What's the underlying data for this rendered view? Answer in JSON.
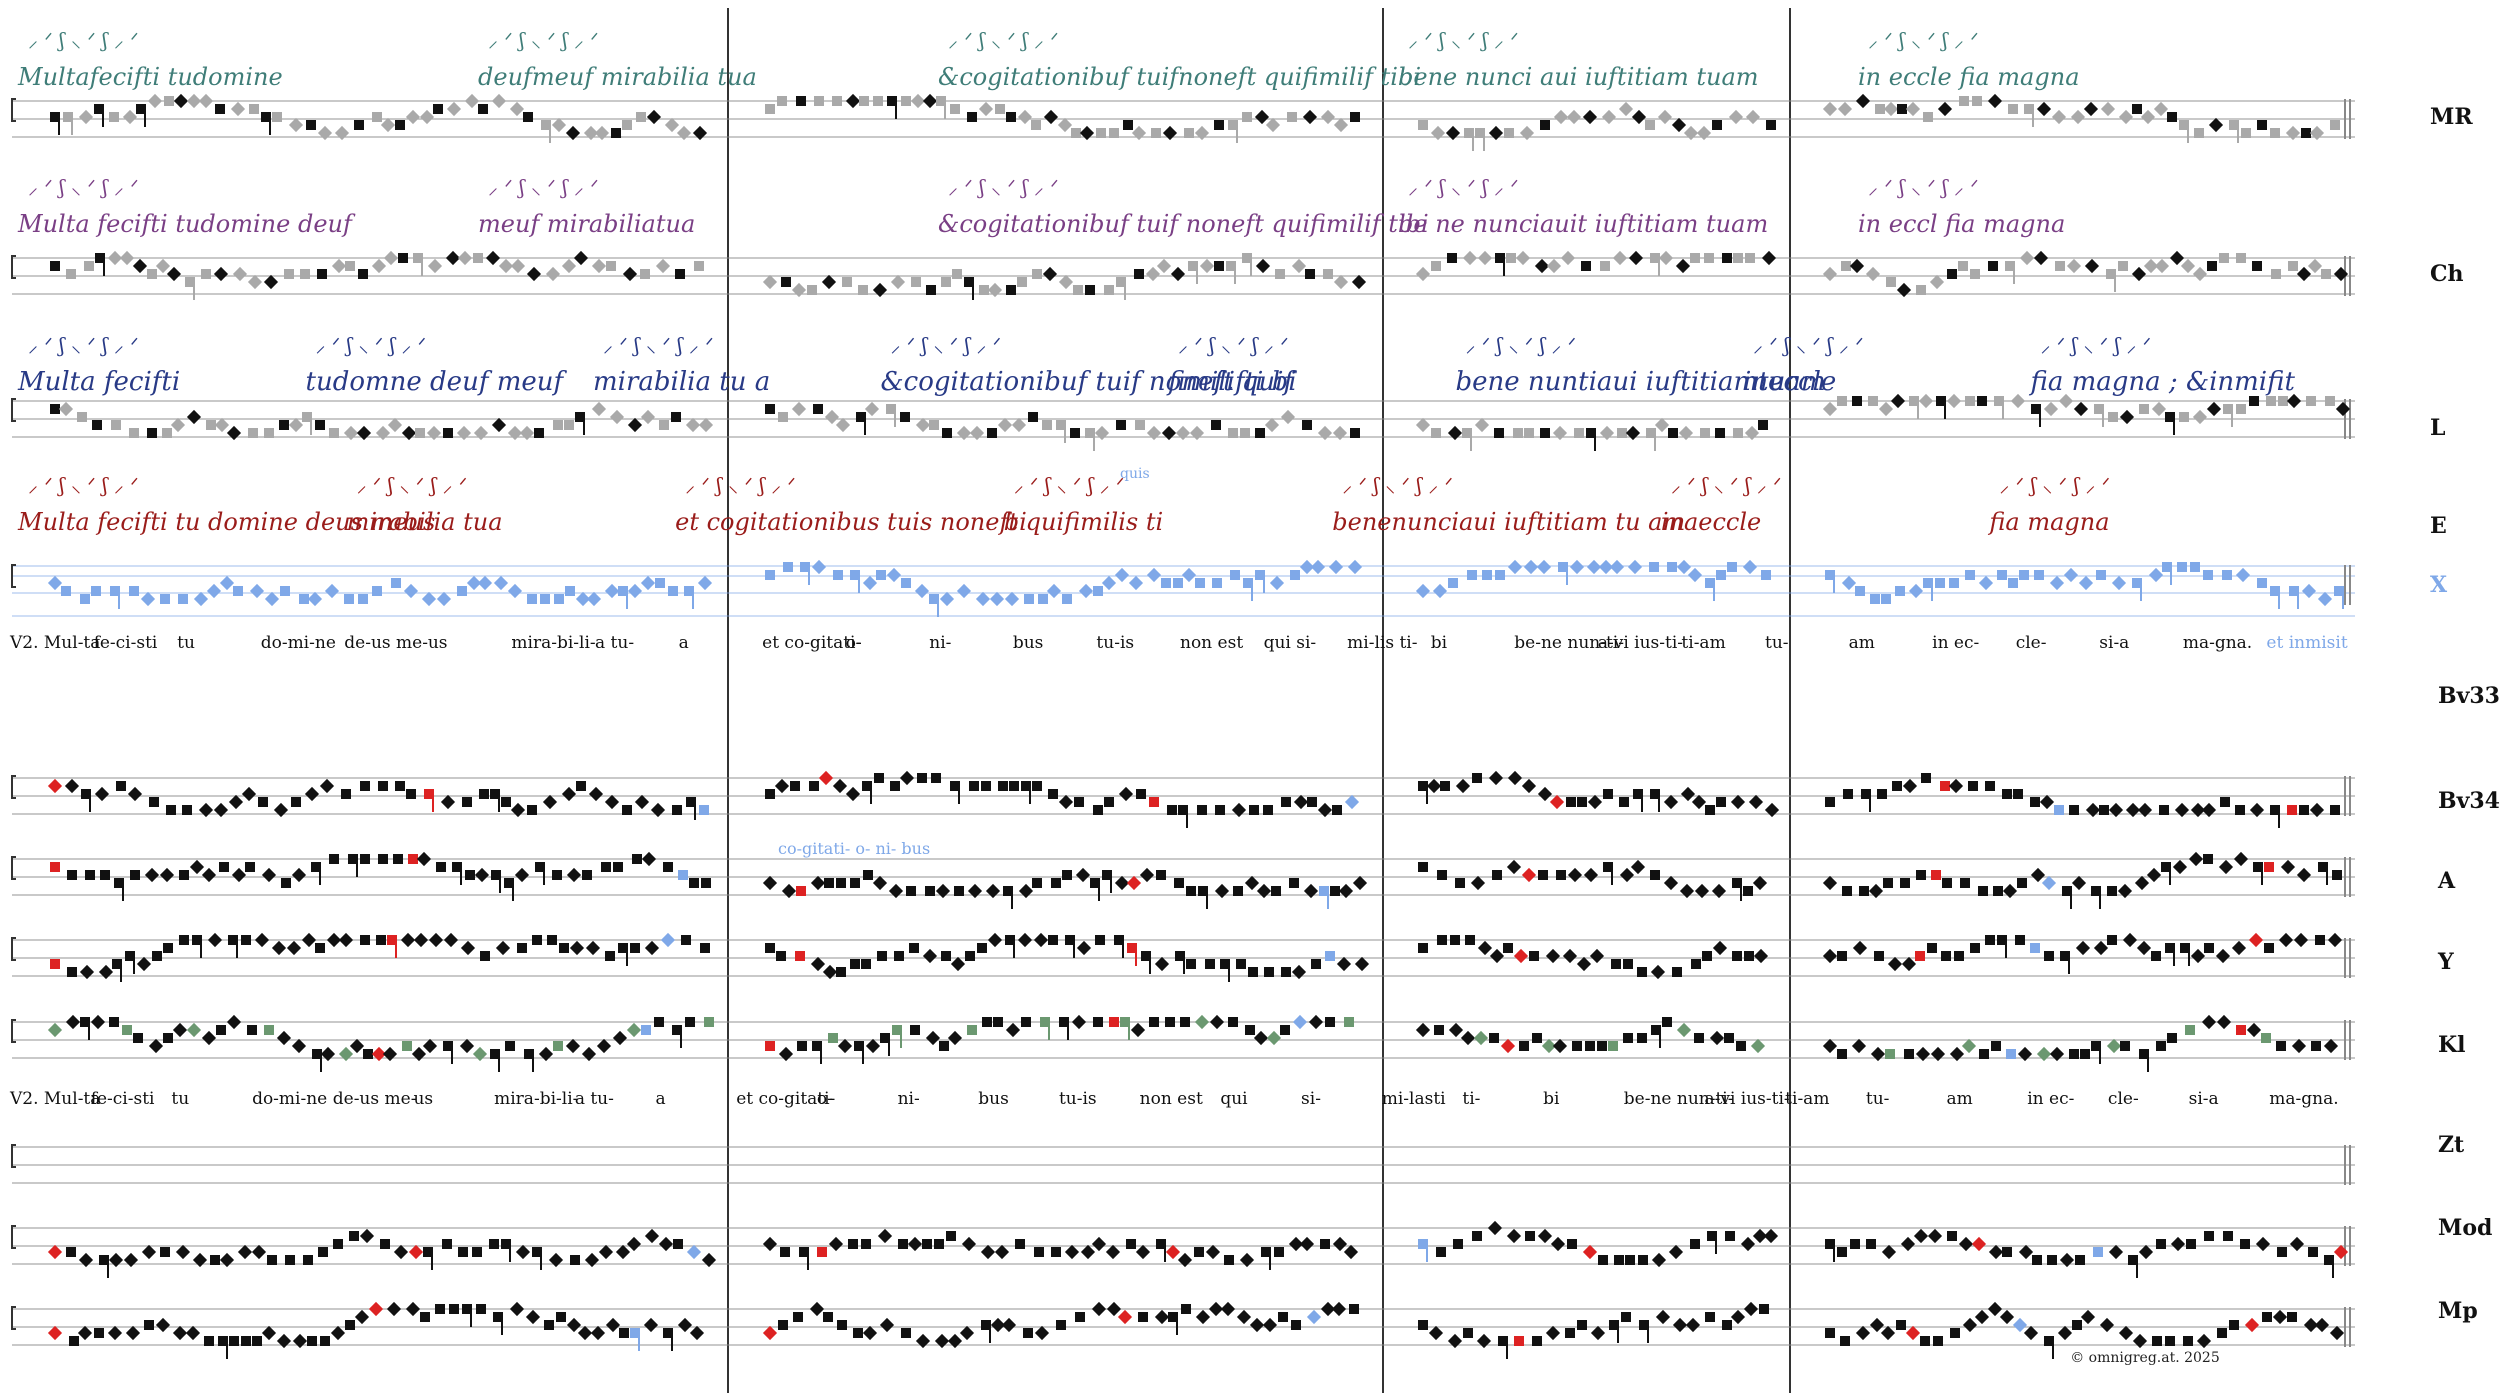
{
  "colors": {
    "black": "#111111",
    "grey": "#a9a9a9",
    "blue": "#7fa8e8",
    "red": "#dd2222",
    "green": "#6b9870",
    "teal_ms": "#3f7d78",
    "purple_ms": "#7a3f85",
    "navy_ms": "#283a86",
    "darkred_ms": "#9a1c1a",
    "staff": "#8c8c8c"
  },
  "sources": [
    {
      "id": "MR",
      "label": "MR",
      "ms_color": "teal_ms",
      "ms_text": [
        "Multafecifti tudomine",
        "deufmeuf mirabilia tua",
        "&cogitationibuf tuifnoneft quifimilif tibi",
        "bene nunci aui iuftitiam tuam",
        "in eccle fia magna"
      ]
    },
    {
      "id": "Ch",
      "label": "Ch",
      "ms_color": "purple_ms",
      "ms_text": [
        "Multa fecifti tudomine deuf",
        "meuf mirabiliatua",
        "&cogitationibuf tuif   noneft quifimilif tibi",
        "be ne nunciauit iuftitiam tuam",
        "in eccl   fia magna"
      ]
    },
    {
      "id": "L",
      "label": "L",
      "ms_color": "navy_ms",
      "ms_text": [
        "Multa fecifti",
        "tudomne deuf meuf",
        "mirabilia tu a",
        "&cogitationibuf tuif noneft quif",
        "fimilifti     bi",
        "bene nuntiaui   iuftitiamtuam",
        "ineccle",
        "fia   magna ;   &inmifit"
      ]
    },
    {
      "id": "E",
      "label": "E",
      "ms_color": "darkred_ms",
      "ms_text": [
        "Multa fecifti tu domine deus meus",
        "mirabilia tua",
        "et cogitationibus   tuis   noneft quifimilis ti",
        "bi",
        "benenunciaui   iuftitiam   tu am",
        "inaeccle",
        "fia magna"
      ],
      "superscript": "quis"
    },
    {
      "id": "X",
      "label": "X",
      "ms_color": "blue",
      "ms_text": []
    }
  ],
  "lyrics_upper": [
    "V2. Mul-ta",
    "fe-ci-sti",
    "tu",
    "do-mi-ne",
    "de-us me-",
    "us",
    "mira-bi-li-",
    "a tu-",
    "a",
    "et co-gitati-",
    "o-",
    "ni-",
    "bus",
    "tu-is",
    "non est",
    "qui si-",
    "mi-lis ti-",
    "bi",
    "be-ne nun-ti-",
    "a-vi ius-ti-",
    "ti-am",
    "tu-",
    "am",
    "in ec-",
    "cle-",
    "si-a",
    "ma-gna.",
    "et inmisit"
  ],
  "lower_sources": [
    "Bv33",
    "Bv34",
    "A",
    "Y",
    "Kl",
    "Zt",
    "Mod",
    "Mp"
  ],
  "bv34_variant": "co-gitati-   o-   ni-   bus",
  "lyrics_lower": [
    "V2. Mul-ta",
    "fe-ci-sti",
    "tu",
    "do-mi-ne",
    "de-us me-",
    "us",
    "mira-bi-li-",
    "a tu-",
    "a",
    "et co-gitati-",
    "o-",
    "ni-",
    "bus",
    "tu-is",
    "non est",
    "qui",
    "si-",
    "mi-lasti",
    "ti-",
    "bi",
    "be-ne nun-ti-",
    "a-vi ius-ti-",
    "ti-am",
    "tu-",
    "am",
    "in ec-",
    "cle-",
    "si-a",
    "ma-gna."
  ],
  "copyright": "©   omnigreg.at.    2025"
}
